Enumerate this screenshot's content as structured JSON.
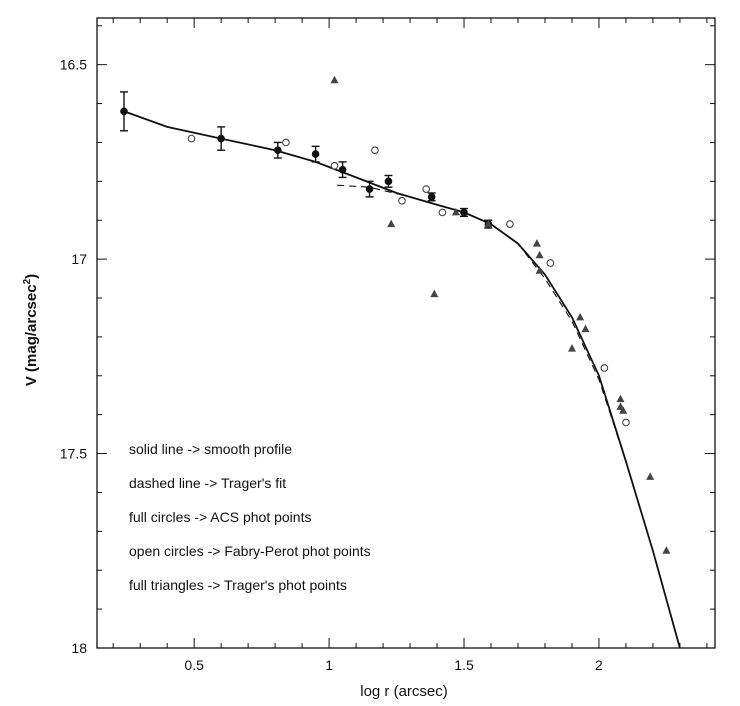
{
  "chart_data": {
    "type": "scatter",
    "title": "",
    "xlabel": "log r (arcsec)",
    "ylabel": "V (mag/arcsec",
    "ylabel_superscript": "2",
    "ylabel_close": ")",
    "xlim": [
      0.14,
      2.43
    ],
    "ylim": [
      18.0,
      16.38
    ],
    "y_inverted": true,
    "grid": false,
    "x_ticks": [
      {
        "value": 0.5,
        "label": "0.5"
      },
      {
        "value": 1.0,
        "label": "1"
      },
      {
        "value": 1.5,
        "label": "1.5"
      },
      {
        "value": 2.0,
        "label": "2"
      }
    ],
    "y_ticks": [
      {
        "value": 16.5,
        "label": "16.5"
      },
      {
        "value": 17.0,
        "label": "17"
      },
      {
        "value": 17.5,
        "label": "17.5"
      },
      {
        "value": 18.0,
        "label": "18"
      }
    ],
    "annotations": [
      "solid line -> smooth profile",
      "dashed line -> Trager's fit",
      "full circles -> ACS phot points",
      "open circles -> Fabry-Perot phot points",
      "full triangles -> Trager's phot points"
    ],
    "series": [
      {
        "style": "solid-line",
        "x": [
          0.24,
          0.4,
          0.6,
          0.8,
          0.95,
          1.1,
          1.25,
          1.4,
          1.5,
          1.6,
          1.7,
          1.8,
          1.9,
          2.0,
          2.1,
          2.2,
          2.3
        ],
        "y": [
          16.62,
          16.66,
          16.69,
          16.72,
          16.75,
          16.79,
          16.83,
          16.86,
          16.88,
          16.91,
          16.96,
          17.04,
          17.15,
          17.3,
          17.52,
          17.75,
          18.0
        ]
      },
      {
        "style": "dashed-line",
        "x": [
          1.03,
          1.15,
          1.3,
          1.4,
          1.5,
          1.6,
          1.7,
          1.8,
          1.9,
          2.0,
          2.1,
          2.2,
          2.3
        ],
        "y": [
          16.81,
          16.815,
          16.84,
          16.86,
          16.88,
          16.91,
          16.96,
          17.05,
          17.16,
          17.31,
          17.52,
          17.75,
          18.0
        ]
      },
      {
        "style": "full-circles",
        "x": [
          0.24,
          0.6,
          0.81,
          0.95,
          1.05,
          1.15,
          1.22,
          1.38,
          1.5,
          1.59
        ],
        "y": [
          16.62,
          16.69,
          16.72,
          16.73,
          16.77,
          16.82,
          16.8,
          16.84,
          16.88,
          16.91
        ],
        "err": [
          0.05,
          0.03,
          0.02,
          0.02,
          0.02,
          0.02,
          0.015,
          0.01,
          0.01,
          0.01
        ]
      },
      {
        "style": "open-circles",
        "x": [
          0.49,
          0.84,
          1.02,
          1.17,
          1.27,
          1.36,
          1.42,
          1.67,
          1.82,
          2.02,
          2.1
        ],
        "y": [
          16.69,
          16.7,
          16.76,
          16.72,
          16.85,
          16.82,
          16.88,
          16.91,
          17.01,
          17.28,
          17.42
        ],
        "r_values": []
      },
      {
        "style": "full-triangles",
        "x": [
          1.02,
          1.23,
          1.39,
          1.47,
          1.59,
          1.77,
          1.78,
          1.78,
          1.9,
          1.93,
          1.95,
          2.08,
          2.08,
          2.09,
          2.19,
          2.25
        ],
        "y": [
          16.54,
          16.91,
          17.09,
          16.88,
          16.91,
          16.96,
          16.99,
          17.03,
          17.23,
          17.15,
          17.18,
          17.36,
          17.38,
          17.39,
          17.56,
          17.75
        ]
      }
    ]
  }
}
